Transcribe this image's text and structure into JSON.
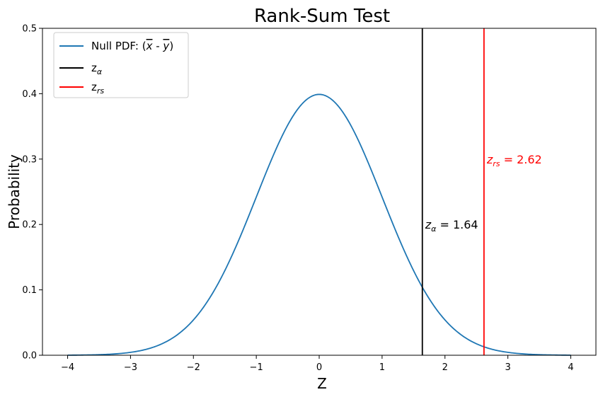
{
  "chart_data": {
    "type": "line",
    "title": "Rank-Sum Test",
    "xlabel": "Z",
    "ylabel": "Probability",
    "xlim": [
      -4.4,
      4.4
    ],
    "ylim": [
      0,
      0.5
    ],
    "xticks": [
      -4,
      -3,
      -2,
      -1,
      0,
      1,
      2,
      3,
      4
    ],
    "xtick_labels": [
      "−4",
      "−3",
      "−2",
      "−1",
      "0",
      "1",
      "2",
      "3",
      "4"
    ],
    "yticks": [
      0.0,
      0.1,
      0.2,
      0.3,
      0.4,
      0.5
    ],
    "ytick_labels": [
      "0.0",
      "0.1",
      "0.2",
      "0.3",
      "0.4",
      "0.5"
    ],
    "grid": false,
    "legend_position": "top-left",
    "curve": {
      "name_prefix": "Null PDF: (",
      "name_x": "x",
      "name_sep": " - ",
      "name_y": "y",
      "name_suffix": ")",
      "x_range": [
        -4,
        4
      ],
      "distribution": "standard normal",
      "mean": 0,
      "std": 1,
      "color": "#1f77b4"
    },
    "vlines": [
      {
        "legend_base": "z",
        "legend_sub": "α",
        "x": 1.64,
        "color": "#000000",
        "annotation_base": "z",
        "annotation_sub": "α",
        "annotation_value": " = 1.64",
        "annotation_y": 0.2
      },
      {
        "legend_base": "z",
        "legend_sub": "rs",
        "x": 2.62,
        "color": "#ff0000",
        "annotation_base": "z",
        "annotation_sub": "rs",
        "annotation_value": " = 2.62",
        "annotation_y": 0.3
      }
    ]
  }
}
